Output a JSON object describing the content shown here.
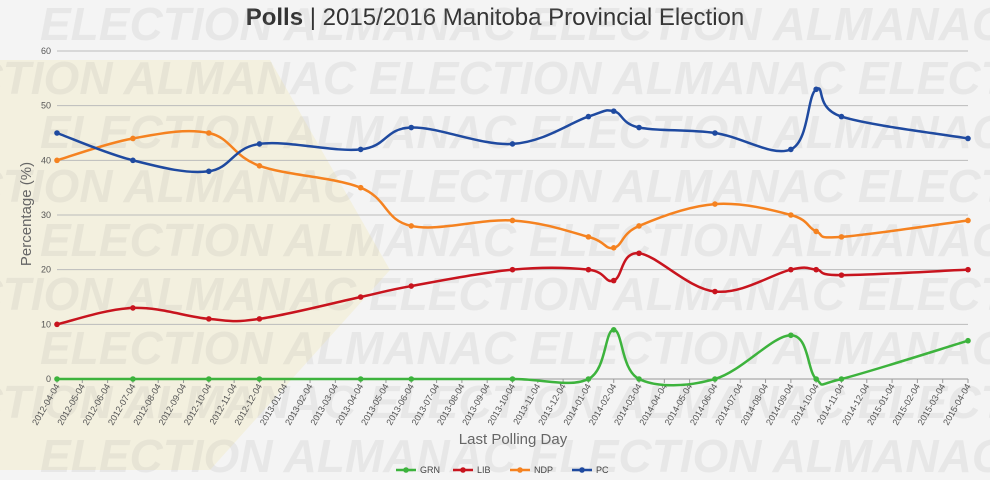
{
  "title": {
    "bold": "Polls",
    "rest": " | 2015/2016 Manitoba Provincial Election"
  },
  "watermark": {
    "brand": "ELECTION",
    "brand2": "ALMANAC"
  },
  "chart_data": {
    "type": "line",
    "xlabel": "Last Polling Day",
    "ylabel": "Percentage (%)",
    "ylim": [
      0,
      60
    ],
    "yticks": [
      0,
      10,
      20,
      30,
      40,
      50,
      60
    ],
    "grid": true,
    "legend_position": "bottom-center",
    "categories": [
      "2012-04-04",
      "2012-05-04",
      "2012-06-04",
      "2012-07-04",
      "2012-08-04",
      "2012-09-04",
      "2012-10-04",
      "2012-11-04",
      "2012-12-04",
      "2013-01-04",
      "2013-02-04",
      "2013-03-04",
      "2013-04-04",
      "2013-05-04",
      "2013-06-04",
      "2013-07-04",
      "2013-08-04",
      "2013-09-04",
      "2013-10-04",
      "2013-11-04",
      "2013-12-04",
      "2014-01-04",
      "2014-02-04",
      "2014-03-04",
      "2014-04-04",
      "2014-05-04",
      "2014-06-04",
      "2014-07-04",
      "2014-08-04",
      "2014-09-04",
      "2014-10-04",
      "2014-11-04",
      "2014-12-04",
      "2015-01-04",
      "2015-02-04",
      "2015-03-04",
      "2015-04-04"
    ],
    "series": [
      {
        "name": "GRN",
        "color": "#3db33d",
        "points": [
          [
            "2012-04-04",
            0
          ],
          [
            "2012-07-04",
            0
          ],
          [
            "2012-10-04",
            0
          ],
          [
            "2012-12-04",
            0
          ],
          [
            "2013-04-04",
            0
          ],
          [
            "2013-06-04",
            0
          ],
          [
            "2013-10-04",
            0
          ],
          [
            "2014-01-04",
            0
          ],
          [
            "2014-02-04",
            9
          ],
          [
            "2014-03-04",
            0
          ],
          [
            "2014-06-04",
            0
          ],
          [
            "2014-09-04",
            8
          ],
          [
            "2014-10-04",
            0
          ],
          [
            "2014-11-04",
            0
          ],
          [
            "2015-04-04",
            7
          ]
        ]
      },
      {
        "name": "LIB",
        "color": "#c8141e",
        "points": [
          [
            "2012-04-04",
            10
          ],
          [
            "2012-07-04",
            13
          ],
          [
            "2012-10-04",
            11
          ],
          [
            "2012-12-04",
            11
          ],
          [
            "2013-04-04",
            15
          ],
          [
            "2013-06-04",
            17
          ],
          [
            "2013-10-04",
            20
          ],
          [
            "2014-01-04",
            20
          ],
          [
            "2014-02-04",
            18
          ],
          [
            "2014-03-04",
            23
          ],
          [
            "2014-06-04",
            16
          ],
          [
            "2014-09-04",
            20
          ],
          [
            "2014-10-04",
            20
          ],
          [
            "2014-11-04",
            19
          ],
          [
            "2015-04-04",
            20
          ]
        ]
      },
      {
        "name": "NDP",
        "color": "#f58220",
        "points": [
          [
            "2012-04-04",
            40
          ],
          [
            "2012-07-04",
            44
          ],
          [
            "2012-10-04",
            45
          ],
          [
            "2012-12-04",
            39
          ],
          [
            "2013-04-04",
            35
          ],
          [
            "2013-06-04",
            28
          ],
          [
            "2013-10-04",
            29
          ],
          [
            "2014-01-04",
            26
          ],
          [
            "2014-02-04",
            24
          ],
          [
            "2014-03-04",
            28
          ],
          [
            "2014-06-04",
            32
          ],
          [
            "2014-09-04",
            30
          ],
          [
            "2014-10-04",
            27
          ],
          [
            "2014-11-04",
            26
          ],
          [
            "2015-04-04",
            29
          ]
        ]
      },
      {
        "name": "PC",
        "color": "#1f4aa0",
        "points": [
          [
            "2012-04-04",
            45
          ],
          [
            "2012-07-04",
            40
          ],
          [
            "2012-10-04",
            38
          ],
          [
            "2012-12-04",
            43
          ],
          [
            "2013-04-04",
            42
          ],
          [
            "2013-06-04",
            46
          ],
          [
            "2013-10-04",
            43
          ],
          [
            "2014-01-04",
            48
          ],
          [
            "2014-02-04",
            49
          ],
          [
            "2014-03-04",
            46
          ],
          [
            "2014-06-04",
            45
          ],
          [
            "2014-09-04",
            42
          ],
          [
            "2014-10-04",
            53
          ],
          [
            "2014-11-04",
            48
          ],
          [
            "2015-04-04",
            44
          ]
        ]
      }
    ]
  }
}
